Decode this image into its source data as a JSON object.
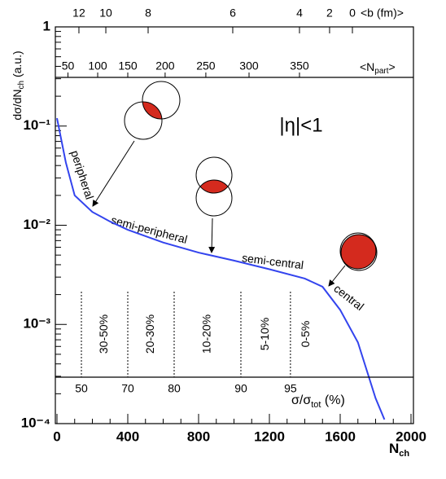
{
  "chart_data": {
    "type": "line",
    "y_label": {
      "main": "dσ/dN",
      "sub": "ch",
      "rest": " (a.u.)"
    },
    "x_label": {
      "main": "N",
      "sub": "ch"
    },
    "annotation": "|η|<1",
    "regions": [
      "peripheral",
      "semi-peripheral",
      "semi-central",
      "central"
    ],
    "log_y": true,
    "xlim": [
      0,
      2000
    ],
    "xticks": [
      0,
      400,
      800,
      1200,
      1600,
      2000
    ],
    "ylim": [
      0.0001,
      1
    ],
    "yticks": [
      {
        "value": 0.0001,
        "label": "10⁻⁴"
      },
      {
        "value": 0.001,
        "label": "10⁻³"
      },
      {
        "value": 0.01,
        "label": "10⁻²"
      },
      {
        "value": 0.1,
        "label": "10⁻¹"
      },
      1
    ],
    "series": [
      {
        "name": "dσ/dNch",
        "color": "#3344ee",
        "x": [
          0,
          50,
          100,
          200,
          300,
          400,
          600,
          800,
          1000,
          1200,
          1400,
          1500,
          1600,
          1700,
          1800,
          1850
        ],
        "values": [
          0.12,
          0.043,
          0.02,
          0.0136,
          0.0109,
          0.009,
          0.0067,
          0.0053,
          0.0044,
          0.0036,
          0.0029,
          0.0024,
          0.0014,
          0.00066,
          0.00018,
          0.00011
        ]
      }
    ],
    "b_axis": {
      "label": "<b (fm)>",
      "ticks": [
        {
          "value": 12,
          "nch": 124
        },
        {
          "value": 10,
          "nch": 276
        },
        {
          "value": 8,
          "nch": 515
        },
        {
          "value": 6,
          "nch": 993
        },
        {
          "value": 4,
          "nch": 1370
        },
        {
          "value": 2,
          "nch": 1540
        },
        {
          "value": 0,
          "nch": 1669
        }
      ]
    },
    "npart_axis": {
      "label": {
        "main": "<N",
        "sub": "part",
        "rest": ">"
      },
      "ticks": [
        {
          "value": 50,
          "nch": 62
        },
        {
          "value": 100,
          "nch": 230
        },
        {
          "value": 150,
          "nch": 400
        },
        {
          "value": 200,
          "nch": 611
        },
        {
          "value": 250,
          "nch": 841
        },
        {
          "value": 300,
          "nch": 1085
        },
        {
          "value": 350,
          "nch": 1370
        }
      ]
    },
    "centrality_axis": {
      "label": {
        "main": "σ/σ",
        "sub": "tot",
        "rest": " (%)"
      },
      "ticks": [
        {
          "value": 50,
          "nch": 138
        },
        {
          "value": 70,
          "nch": 400
        },
        {
          "value": 80,
          "nch": 662
        },
        {
          "value": 90,
          "nch": 1039
        },
        {
          "value": 95,
          "nch": 1319
        }
      ],
      "bins": [
        "30-50%",
        "20-30%",
        "10-20%",
        "5-10%",
        "0-5%"
      ]
    }
  }
}
